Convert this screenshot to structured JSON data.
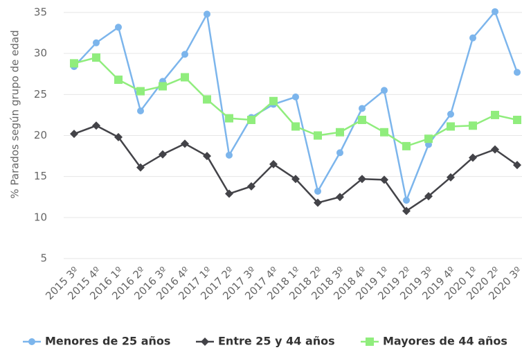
{
  "chart_data": {
    "type": "line",
    "y_label": "% Parados según grupo de edad",
    "categories": [
      "2015 3º",
      "2015 4º",
      "2016 1º",
      "2016 2º",
      "2016 3º",
      "2016 4º",
      "2017 1º",
      "2017 2º",
      "2017 3º",
      "2017 4º",
      "2018 1º",
      "2018 2º",
      "2018 3º",
      "2018 4º",
      "2019 1º",
      "2019 2º",
      "2019 3º",
      "2019 4º",
      "2020 1º",
      "2020 2º",
      "2020 3º"
    ],
    "series": [
      {
        "name": "Menores de 25 años",
        "color": "#7cb5ec",
        "marker": "circle",
        "values": [
          28.4,
          31.3,
          33.2,
          23.0,
          26.6,
          29.9,
          34.8,
          17.6,
          22.2,
          23.8,
          24.7,
          13.2,
          17.9,
          23.3,
          25.5,
          12.1,
          18.9,
          22.6,
          31.9,
          35.1,
          27.7
        ]
      },
      {
        "name": "Entre 25 y 44 años",
        "color": "#434348",
        "marker": "diamond",
        "values": [
          20.2,
          21.2,
          19.8,
          16.1,
          17.7,
          19.0,
          17.5,
          12.9,
          13.8,
          16.5,
          14.7,
          11.8,
          12.5,
          14.7,
          14.6,
          10.8,
          12.6,
          14.9,
          17.3,
          18.3,
          16.4
        ]
      },
      {
        "name": "Mayores de 44 años",
        "color": "#90ed7d",
        "marker": "square",
        "values": [
          28.8,
          29.5,
          26.8,
          25.4,
          26.0,
          27.1,
          24.4,
          22.1,
          21.9,
          24.2,
          21.1,
          20.0,
          20.4,
          21.9,
          20.4,
          18.7,
          19.6,
          21.1,
          21.2,
          22.5,
          21.9
        ]
      }
    ],
    "ylim": [
      5,
      35
    ],
    "yticks": [
      5,
      10,
      15,
      20,
      25,
      30,
      35
    ],
    "grid": true,
    "legend": "bottom"
  }
}
